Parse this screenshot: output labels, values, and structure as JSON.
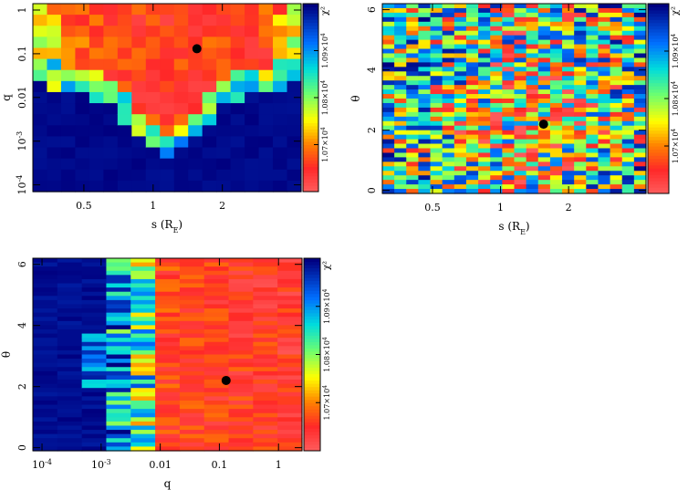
{
  "chart_data": [
    {
      "type": "heatmap",
      "panel": "s-q",
      "xlabel": "s (R_E)",
      "ylabel": "q",
      "x_scale": "log",
      "y_scale": "log",
      "xlim": [
        0.3,
        4.4
      ],
      "ylim": [
        7e-05,
        1.4
      ],
      "x_ticks": [
        {
          "v": 0.5,
          "label": "0.5"
        },
        {
          "v": 1,
          "label": "1"
        },
        {
          "v": 2,
          "label": "2"
        }
      ],
      "y_ticks": [
        {
          "v": 1,
          "label": "1"
        },
        {
          "v": 0.1,
          "label": "0.1"
        },
        {
          "v": 0.01,
          "label": "0.01"
        },
        {
          "v": 0.001,
          "label": "10^-3"
        },
        {
          "v": 0.0001,
          "label": "10^-4"
        }
      ],
      "best_fit": {
        "x": 1.55,
        "y": 0.13
      },
      "colorbar": {
        "label": "χ²",
        "ticks": [
          "1.07×10^4",
          "1.08×10^4",
          "1.09×10^4"
        ]
      }
    },
    {
      "type": "heatmap",
      "panel": "s-theta",
      "xlabel": "s (R_E)",
      "ylabel": "θ",
      "x_scale": "log",
      "y_scale": "linear",
      "xlim": [
        0.3,
        4.4
      ],
      "ylim": [
        -0.1,
        6.2
      ],
      "x_ticks": [
        {
          "v": 0.5,
          "label": "0.5"
        },
        {
          "v": 1,
          "label": "1"
        },
        {
          "v": 2,
          "label": "2"
        }
      ],
      "y_ticks": [
        {
          "v": 0,
          "label": "0"
        },
        {
          "v": 2,
          "label": "2"
        },
        {
          "v": 4,
          "label": "4"
        },
        {
          "v": 6,
          "label": "6"
        }
      ],
      "best_fit": {
        "x": 1.55,
        "y": 2.2
      },
      "colorbar": {
        "label": "χ²",
        "ticks": [
          "1.07×10^4",
          "1.08×10^4",
          "1.09×10^4"
        ]
      }
    },
    {
      "type": "heatmap",
      "panel": "q-theta",
      "xlabel": "q",
      "ylabel": "θ",
      "x_scale": "log",
      "y_scale": "linear",
      "xlim": [
        7e-05,
        2.5
      ],
      "ylim": [
        -0.1,
        6.2
      ],
      "x_ticks": [
        {
          "v": 0.0001,
          "label": "10^-4"
        },
        {
          "v": 0.001,
          "label": "10^-3"
        },
        {
          "v": 0.01,
          "label": "0.01"
        },
        {
          "v": 0.1,
          "label": "0.1"
        },
        {
          "v": 1,
          "label": "1"
        }
      ],
      "y_ticks": [
        {
          "v": 0,
          "label": "0"
        },
        {
          "v": 2,
          "label": "2"
        },
        {
          "v": 4,
          "label": "4"
        },
        {
          "v": 6,
          "label": "6"
        }
      ],
      "best_fit": {
        "x": 0.13,
        "y": 2.2
      },
      "colorbar": {
        "label": "χ²",
        "ticks": [
          "1.07×10^4",
          "1.08×10^4",
          "1.09×10^4"
        ]
      }
    }
  ],
  "colors": {
    "low": "#ff5a5a",
    "mid": "#ffff00",
    "high": "#000080",
    "marker": "#000000"
  }
}
